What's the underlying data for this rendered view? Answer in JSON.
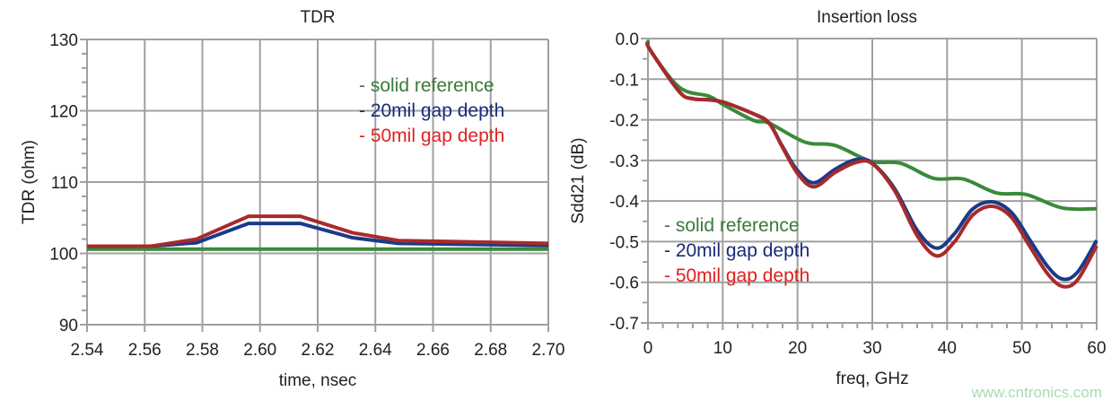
{
  "chart_data": [
    {
      "type": "line",
      "title": "TDR",
      "xlabel": "time, nsec",
      "ylabel": "TDR (ohm)",
      "xlim": [
        2.54,
        2.7
      ],
      "ylim": [
        90,
        130
      ],
      "xticks": [
        "2.54",
        "2.56",
        "2.58",
        "2.60",
        "2.62",
        "2.64",
        "2.66",
        "2.68",
        "2.70"
      ],
      "yticks": [
        "90",
        "100",
        "110",
        "120",
        "130"
      ],
      "grid": true,
      "legend_placement": "top-right",
      "series": [
        {
          "name": "- solid reference",
          "color": "#3a8a3a",
          "x": [
            2.54,
            2.7
          ],
          "y": [
            100.6,
            100.6
          ]
        },
        {
          "name": "- 20mil gap depth",
          "color": "#1a3a8a",
          "x": [
            2.54,
            2.562,
            2.578,
            2.596,
            2.614,
            2.632,
            2.648,
            2.7
          ],
          "y": [
            101.0,
            101.0,
            101.5,
            104.2,
            104.2,
            102.2,
            101.4,
            101.1
          ]
        },
        {
          "name": "- 50mil gap depth",
          "color": "#a82a2a",
          "x": [
            2.54,
            2.562,
            2.578,
            2.596,
            2.614,
            2.632,
            2.648,
            2.7
          ],
          "y": [
            101.0,
            101.0,
            102.0,
            105.2,
            105.2,
            102.9,
            101.8,
            101.4
          ]
        }
      ],
      "legend_colors": [
        "#3a7a3a",
        "#1a2a7a",
        "#e02020"
      ]
    },
    {
      "type": "line",
      "title": "Insertion loss",
      "xlabel": "freq, GHz",
      "ylabel": "Sdd21 (dB)",
      "xlim": [
        0,
        60
      ],
      "ylim": [
        -0.7,
        0.0
      ],
      "xticks": [
        "0",
        "10",
        "20",
        "30",
        "40",
        "50",
        "60"
      ],
      "yticks": [
        "0.0",
        "-0.1",
        "-0.2",
        "-0.3",
        "-0.4",
        "-0.5",
        "-0.6",
        "-0.7"
      ],
      "grid": true,
      "legend_placement": "bottom-left",
      "series": [
        {
          "name": "- solid reference",
          "color": "#3a8a3a",
          "x": [
            0,
            0.3,
            4.2,
            8.2,
            10.2,
            14.2,
            16.2,
            21,
            25,
            29.8,
            33.8,
            38.2,
            42.2,
            46.6,
            50.6,
            55.4,
            60
          ],
          "y": [
            -0.004,
            -0.028,
            -0.12,
            -0.142,
            -0.164,
            -0.202,
            -0.208,
            -0.255,
            -0.263,
            -0.302,
            -0.307,
            -0.344,
            -0.346,
            -0.38,
            -0.384,
            -0.417,
            -0.419
          ]
        },
        {
          "name": "- 20mil gap depth",
          "color": "#1a3a8a",
          "x": [
            0,
            0.3,
            4.2,
            6,
            8.2,
            10.2,
            14.2,
            16.2,
            18,
            20,
            22.2,
            25,
            27.8,
            30,
            33,
            36,
            38.6,
            41,
            43.4,
            46,
            48.6,
            51,
            53.4,
            55.4,
            57.4,
            60
          ],
          "y": [
            -0.01,
            -0.028,
            -0.131,
            -0.148,
            -0.151,
            -0.157,
            -0.186,
            -0.208,
            -0.266,
            -0.325,
            -0.355,
            -0.322,
            -0.298,
            -0.307,
            -0.37,
            -0.472,
            -0.516,
            -0.48,
            -0.42,
            -0.402,
            -0.428,
            -0.494,
            -0.56,
            -0.592,
            -0.576,
            -0.497
          ]
        },
        {
          "name": "- 50mil gap depth",
          "color": "#a82a2a",
          "x": [
            0,
            0.3,
            4.2,
            6,
            8.2,
            10.2,
            14.2,
            16.2,
            18,
            20,
            22.2,
            25,
            27.8,
            30,
            33,
            36,
            38.6,
            41,
            43.4,
            46,
            48.6,
            51,
            53.4,
            55.4,
            57.4,
            60
          ],
          "y": [
            -0.01,
            -0.028,
            -0.131,
            -0.148,
            -0.151,
            -0.157,
            -0.186,
            -0.208,
            -0.268,
            -0.332,
            -0.365,
            -0.33,
            -0.305,
            -0.308,
            -0.375,
            -0.485,
            -0.535,
            -0.5,
            -0.435,
            -0.413,
            -0.44,
            -0.51,
            -0.578,
            -0.61,
            -0.595,
            -0.51
          ]
        }
      ],
      "legend_colors": [
        "#3a7a3a",
        "#1a2a7a",
        "#e02020"
      ]
    }
  ],
  "watermark": "www.cntronics.com"
}
